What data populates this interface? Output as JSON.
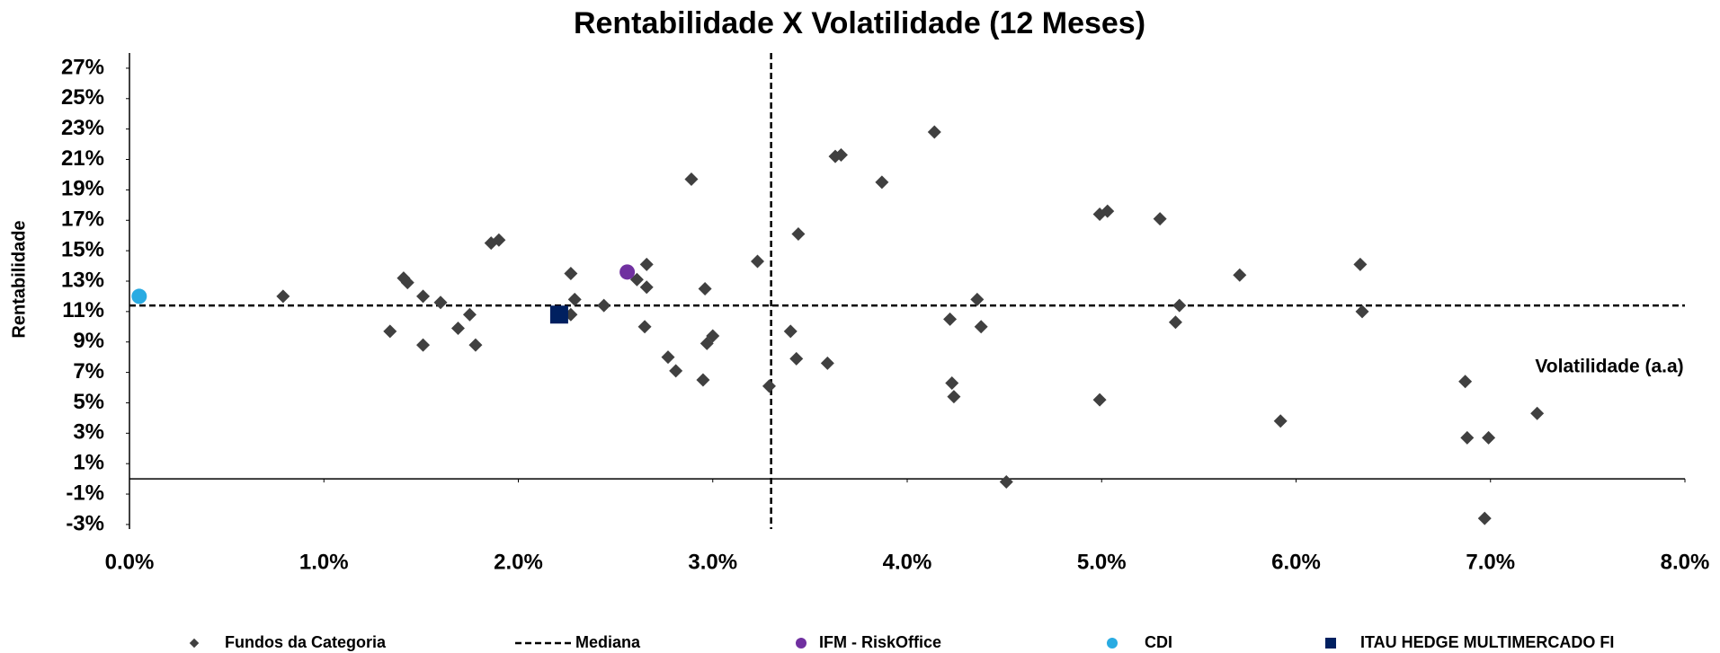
{
  "chart_data": {
    "type": "scatter",
    "title": "Rentabilidade X Volatilidade (12 Meses)",
    "y_label": "Rentabilidade",
    "x_label": "Volatilidade (a.a)",
    "xlim": [
      0,
      8
    ],
    "ylim": [
      -3.3,
      28
    ],
    "xticks": [
      {
        "value": 0,
        "label": "0.0%"
      },
      {
        "value": 1,
        "label": "1.0%"
      },
      {
        "value": 2,
        "label": "2.0%"
      },
      {
        "value": 3,
        "label": "3.0%"
      },
      {
        "value": 4,
        "label": "4.0%"
      },
      {
        "value": 5,
        "label": "5.0%"
      },
      {
        "value": 6,
        "label": "6.0%"
      },
      {
        "value": 7,
        "label": "7.0%"
      },
      {
        "value": 8,
        "label": "8.0%"
      }
    ],
    "yticks": [
      {
        "value": -3,
        "label": "-3%"
      },
      {
        "value": -1,
        "label": "-1%"
      },
      {
        "value": 1,
        "label": "1%"
      },
      {
        "value": 3,
        "label": "3%"
      },
      {
        "value": 5,
        "label": "5%"
      },
      {
        "value": 7,
        "label": "7%"
      },
      {
        "value": 9,
        "label": "9%"
      },
      {
        "value": 11,
        "label": "11%"
      },
      {
        "value": 13,
        "label": "13%"
      },
      {
        "value": 15,
        "label": "15%"
      },
      {
        "value": 17,
        "label": "17%"
      },
      {
        "value": 19,
        "label": "19%"
      },
      {
        "value": 21,
        "label": "21%"
      },
      {
        "value": 23,
        "label": "23%"
      },
      {
        "value": 25,
        "label": "25%"
      },
      {
        "value": 27,
        "label": "27%"
      }
    ],
    "median": {
      "name": "Mediana",
      "x": 3.3,
      "y": 11.4,
      "color": "#000000"
    },
    "series": [
      {
        "name": "Fundos da Categoria",
        "color": "#404040",
        "marker": "diamond",
        "x": [
          0.79,
          1.34,
          1.41,
          1.43,
          1.51,
          1.51,
          1.6,
          1.69,
          1.75,
          1.78,
          1.86,
          1.9,
          2.27,
          2.29,
          2.27,
          2.44,
          2.61,
          2.66,
          2.66,
          2.65,
          2.77,
          2.81,
          2.89,
          2.96,
          2.97,
          3.0,
          2.95,
          3.23,
          3.29,
          3.4,
          3.43,
          3.44,
          3.59,
          3.63,
          3.66,
          3.87,
          4.14,
          4.22,
          4.23,
          4.24,
          4.36,
          4.38,
          4.51,
          4.99,
          5.03,
          4.99,
          5.3,
          5.38,
          5.4,
          5.71,
          5.92,
          6.33,
          6.34,
          6.87,
          6.88,
          6.99,
          6.97,
          7.24
        ],
        "values": [
          12.0,
          9.7,
          13.2,
          12.9,
          12.0,
          8.8,
          11.6,
          9.9,
          10.8,
          8.8,
          15.5,
          15.7,
          13.5,
          11.8,
          10.8,
          11.4,
          13.1,
          14.1,
          12.6,
          10.0,
          8.0,
          7.1,
          19.7,
          12.5,
          8.9,
          9.4,
          6.5,
          14.3,
          6.1,
          9.7,
          7.9,
          16.1,
          7.6,
          21.2,
          21.3,
          19.5,
          22.8,
          10.5,
          6.3,
          5.4,
          11.8,
          10.0,
          -0.2,
          17.4,
          17.6,
          5.2,
          17.1,
          10.3,
          11.4,
          13.4,
          3.8,
          14.1,
          11.0,
          6.4,
          2.7,
          2.7,
          -2.6,
          4.3
        ]
      },
      {
        "name": "IFM - RiskOffice",
        "color": "#7030a0",
        "marker": "circle",
        "x": [
          2.56
        ],
        "values": [
          13.6
        ]
      },
      {
        "name": "CDI",
        "color": "#29abe2",
        "marker": "circle",
        "x": [
          0.05
        ],
        "values": [
          12.0
        ]
      },
      {
        "name": "ITAU HEDGE MULTIMERCADO FI",
        "color": "#002060",
        "marker": "square",
        "x": [
          2.21
        ],
        "values": [
          10.8
        ]
      }
    ]
  }
}
